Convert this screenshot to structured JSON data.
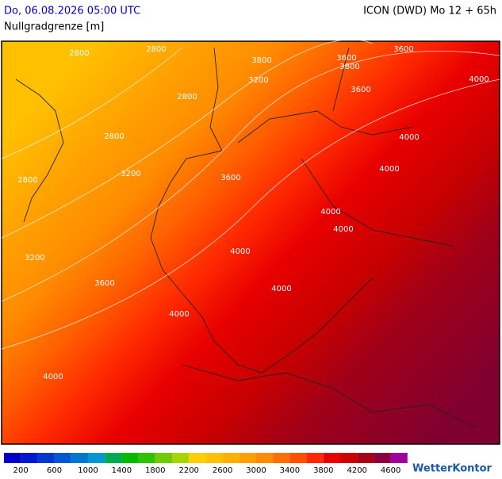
{
  "header": {
    "datetime": "Do, 06.08.2026 05:00 UTC",
    "subtitle": "Nullgradgrenze [m]",
    "model": "ICON (DWD) Mo 12 + 65h"
  },
  "map": {
    "contour_labels": [
      "2800",
      "2800",
      "3800",
      "3200",
      "3600",
      "3600",
      "3800",
      "3600",
      "4000",
      "2800",
      "2800",
      "4000",
      "4000",
      "3200",
      "3600",
      "2800",
      "4000",
      "4000",
      "4000",
      "3200",
      "3600",
      "4000",
      "4000",
      "4000"
    ]
  },
  "legend": {
    "labels": [
      200,
      600,
      1000,
      1400,
      1800,
      2200,
      2600,
      3000,
      3400,
      3800,
      4200,
      4600
    ],
    "colors": [
      "#0000c8",
      "#0018d0",
      "#0038d0",
      "#0058d0",
      "#0078d0",
      "#0098d0",
      "#00aa50",
      "#00bb00",
      "#30c400",
      "#70cc00",
      "#a8d400",
      "#ffd000",
      "#ffc000",
      "#ffb000",
      "#ffa000",
      "#ff8c00",
      "#ff7000",
      "#ff5000",
      "#ff2800",
      "#e80000",
      "#cc0000",
      "#a80018",
      "#8c0040",
      "#a0009c"
    ]
  },
  "logo": {
    "text": "WetterKontor"
  }
}
